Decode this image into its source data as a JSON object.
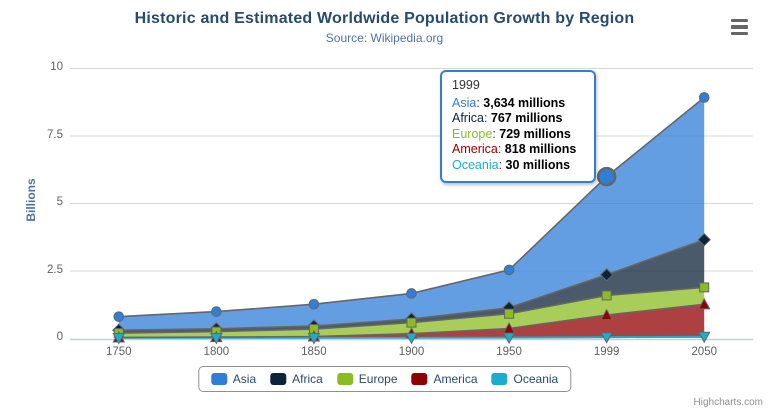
{
  "ui": {
    "credits": "Highcharts.com",
    "icons": {
      "context_menu": "hamburger-menu-icon"
    }
  },
  "colors": {
    "title": "#274b6d",
    "subtitle": "#4d759e",
    "axis_labels": "#606060",
    "axis_line": "#C0D0E0",
    "gridline": "#D8D8D8",
    "legend_text": "#274b6d",
    "tooltip_border": "#2f7ed8"
  },
  "tooltip": {
    "header": "1999",
    "rows": [
      {
        "name": "Asia",
        "color": "#2f7ed8",
        "value": "3,634 millions"
      },
      {
        "name": "Africa",
        "color": "#0d233a",
        "value": "767 millions"
      },
      {
        "name": "Europe",
        "color": "#8bbc21",
        "value": "729 millions"
      },
      {
        "name": "America",
        "color": "#910000",
        "value": "818 millions"
      },
      {
        "name": "Oceania",
        "color": "#1aadce",
        "value": "30 millions"
      }
    ]
  },
  "chart_data": {
    "type": "area",
    "stacking": "normal",
    "title": "Historic and Estimated Worldwide Population Growth by Region",
    "subtitle": "Source: Wikipedia.org",
    "xlabel": "",
    "ylabel": "Billions",
    "ylim": [
      0,
      10000
    ],
    "unit": "millions",
    "grid": "horizontal",
    "legend_position": "bottom",
    "yticks": [
      {
        "value": 0,
        "label": "0"
      },
      {
        "value": 2500,
        "label": "2.5"
      },
      {
        "value": 5000,
        "label": "5"
      },
      {
        "value": 7500,
        "label": "7.5"
      },
      {
        "value": 10000,
        "label": "10"
      }
    ],
    "categories": [
      "1750",
      "1800",
      "1850",
      "1900",
      "1950",
      "1999",
      "2050"
    ],
    "series": [
      {
        "name": "Asia",
        "color": "#2f7ed8",
        "marker": "circle",
        "values": [
          502,
          635,
          809,
          947,
          1402,
          3634,
          5268
        ]
      },
      {
        "name": "Africa",
        "color": "#0d233a",
        "marker": "diamond",
        "values": [
          106,
          107,
          111,
          133,
          221,
          767,
          1766
        ]
      },
      {
        "name": "Europe",
        "color": "#8bbc21",
        "marker": "square",
        "values": [
          163,
          203,
          276,
          408,
          547,
          729,
          628
        ]
      },
      {
        "name": "America",
        "color": "#910000",
        "marker": "triangle",
        "values": [
          18,
          31,
          54,
          156,
          339,
          818,
          1201
        ]
      },
      {
        "name": "Oceania",
        "color": "#1aadce",
        "marker": "triangle-down",
        "values": [
          2,
          2,
          2,
          6,
          13,
          30,
          46
        ]
      }
    ],
    "line_color": "#666666",
    "fill_opacity": 0.75,
    "hover_point": {
      "series": "Asia",
      "category": "1999"
    }
  }
}
